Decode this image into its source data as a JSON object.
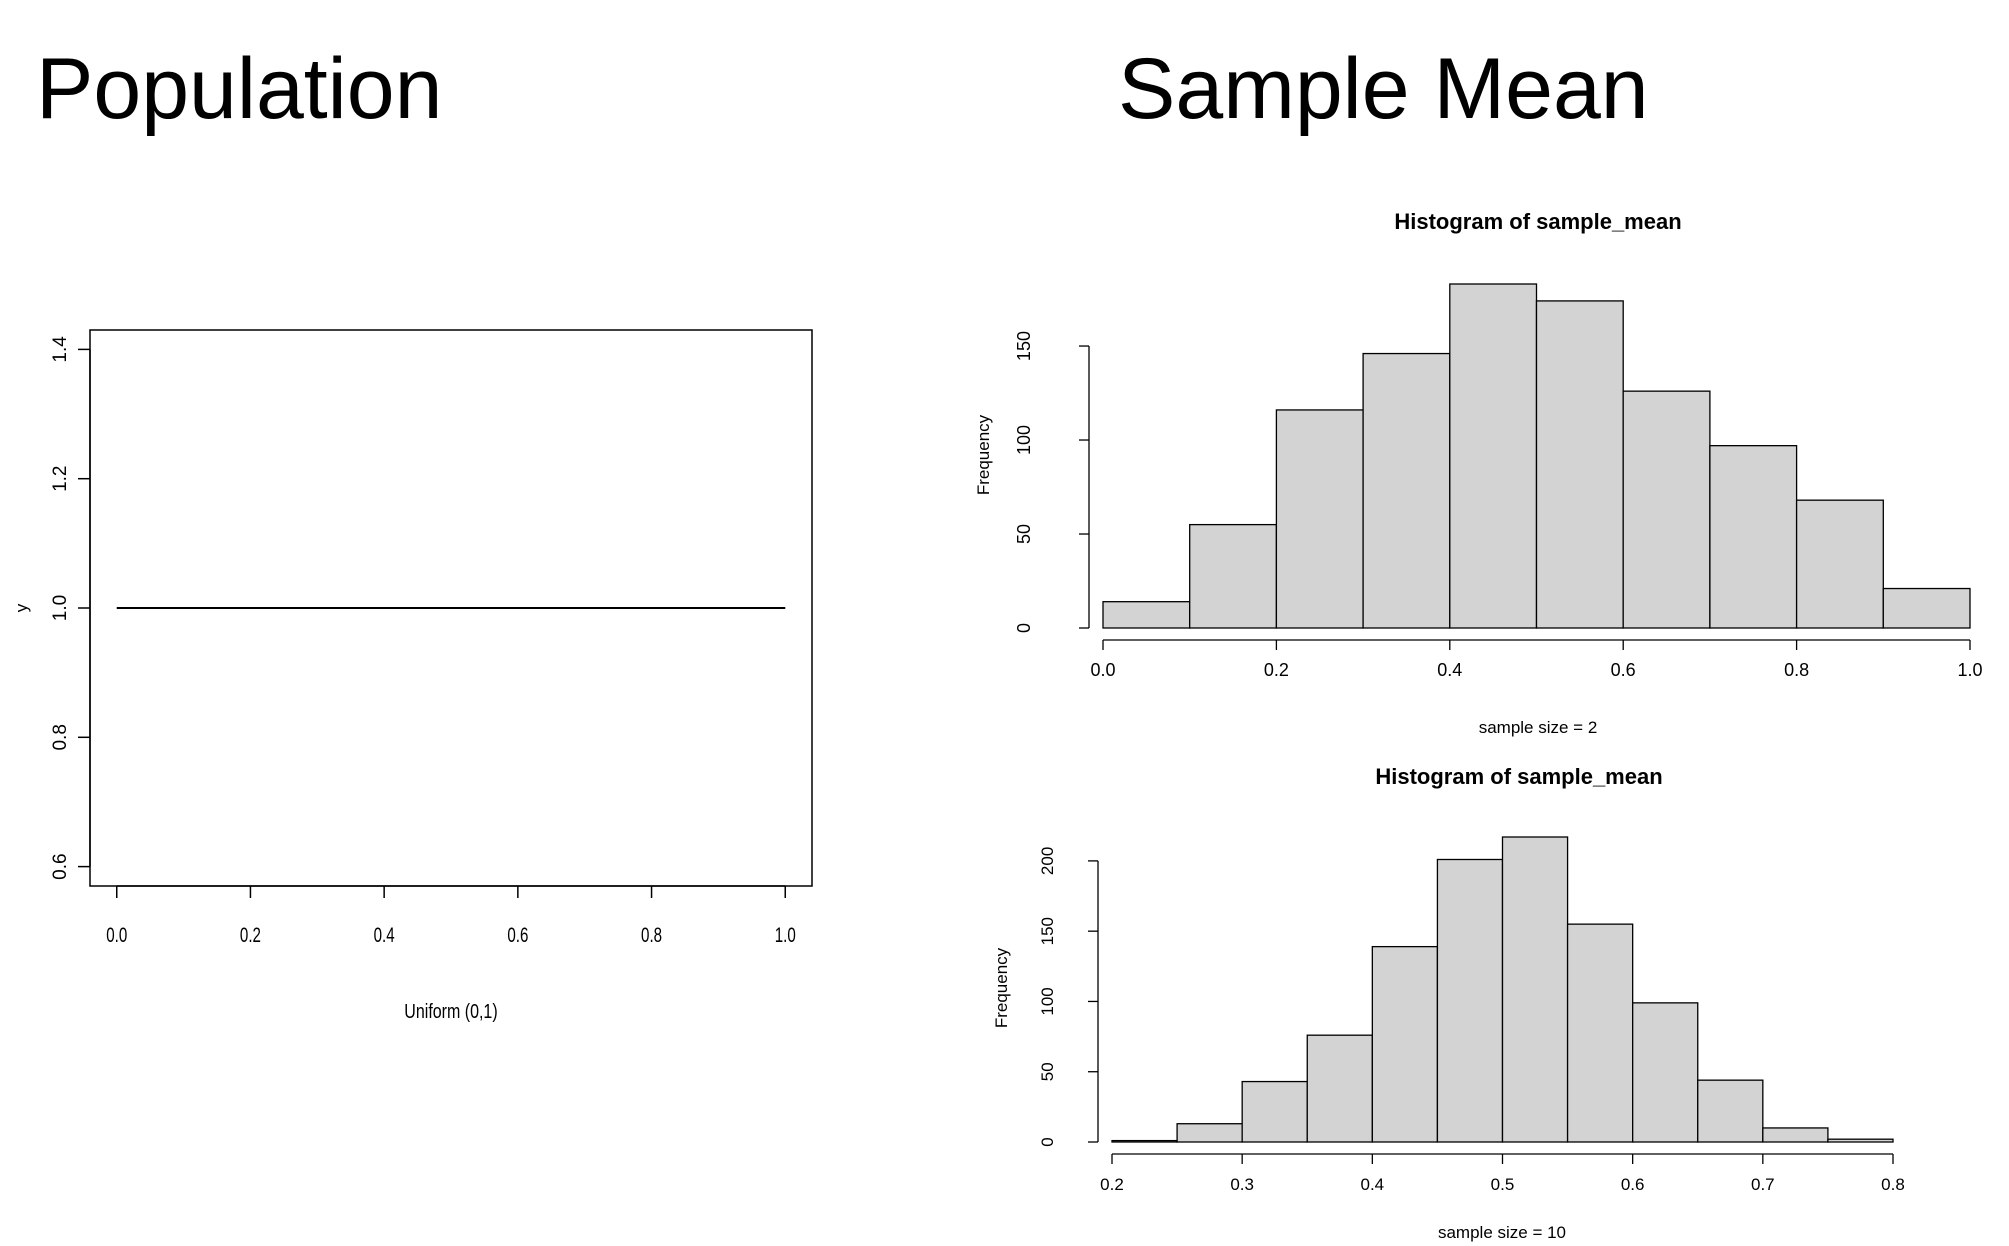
{
  "slide": {
    "left_heading": "Population",
    "right_heading": "Sample Mean"
  },
  "chart_data": [
    {
      "type": "line",
      "title": "",
      "xlabel": "Uniform (0,1)",
      "ylabel": "y",
      "xlim": [
        -0.04,
        1.04
      ],
      "ylim": [
        0.57,
        1.43
      ],
      "xticks": [
        0,
        0.2,
        0.4,
        0.6,
        0.8,
        1
      ],
      "xtick_labels": [
        "0.0",
        "0.2",
        "0.4",
        "0.6",
        "0.8",
        "1.0"
      ],
      "yticks": [
        0.6,
        0.8,
        1.0,
        1.2,
        1.4
      ],
      "ytick_labels": [
        "0.6",
        "0.8",
        "1.0",
        "1.2",
        "1.4"
      ],
      "grid": false,
      "series": [
        {
          "x": [
            0,
            1
          ],
          "y": [
            1,
            1
          ]
        }
      ]
    },
    {
      "type": "bar",
      "title": "Histogram of sample_mean",
      "xlabel": "sample size = 2",
      "ylabel": "Frequency",
      "bins": [
        [
          0,
          0.1
        ],
        [
          0.1,
          0.2
        ],
        [
          0.2,
          0.3
        ],
        [
          0.3,
          0.4
        ],
        [
          0.4,
          0.5
        ],
        [
          0.5,
          0.6
        ],
        [
          0.6,
          0.7
        ],
        [
          0.7,
          0.8
        ],
        [
          0.8,
          0.9
        ],
        [
          0.9,
          1.0
        ]
      ],
      "values": [
        14,
        55,
        116,
        146,
        183,
        174,
        126,
        97,
        68,
        21
      ],
      "xlim": [
        0,
        1
      ],
      "ylim": [
        0,
        183
      ],
      "xticks": [
        0,
        0.2,
        0.4,
        0.6,
        0.8,
        1.0
      ],
      "xtick_labels": [
        "0.0",
        "0.2",
        "0.4",
        "0.6",
        "0.8",
        "1.0"
      ],
      "yticks": [
        0,
        50,
        100,
        150
      ],
      "ytick_labels": [
        "0",
        "50",
        "100",
        "150"
      ],
      "bar_color": "#d3d3d3",
      "grid": false
    },
    {
      "type": "bar",
      "title": "Histogram of sample_mean",
      "xlabel": "sample size = 10",
      "ylabel": "Frequency",
      "bins": [
        [
          0.2,
          0.25
        ],
        [
          0.25,
          0.3
        ],
        [
          0.3,
          0.35
        ],
        [
          0.35,
          0.4
        ],
        [
          0.4,
          0.45
        ],
        [
          0.45,
          0.5
        ],
        [
          0.5,
          0.55
        ],
        [
          0.55,
          0.6
        ],
        [
          0.6,
          0.65
        ],
        [
          0.65,
          0.7
        ],
        [
          0.7,
          0.75
        ],
        [
          0.75,
          0.8
        ]
      ],
      "values": [
        1,
        13,
        43,
        76,
        139,
        201,
        217,
        155,
        99,
        44,
        10,
        2
      ],
      "xlim": [
        0.2,
        0.8
      ],
      "ylim": [
        0,
        217
      ],
      "xticks": [
        0.2,
        0.3,
        0.4,
        0.5,
        0.6,
        0.7,
        0.8
      ],
      "xtick_labels": [
        "0.2",
        "0.3",
        "0.4",
        "0.5",
        "0.6",
        "0.7",
        "0.8"
      ],
      "yticks": [
        0,
        50,
        100,
        150,
        200
      ],
      "ytick_labels": [
        "0",
        "50",
        "100",
        "150",
        "200"
      ],
      "bar_color": "#d3d3d3",
      "grid": false
    }
  ]
}
